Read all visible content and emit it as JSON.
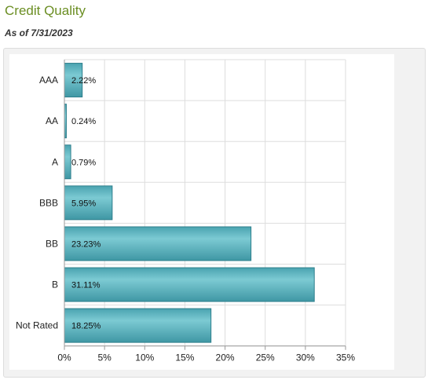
{
  "header": {
    "title": "Credit Quality",
    "subtitle": "As of 7/31/2023"
  },
  "colors": {
    "bar_fill": "#5ab4c0",
    "bar_stroke": "#2e7f8c",
    "title": "#6b8e23",
    "grid": "#dddddd",
    "axis": "#999999"
  },
  "chart_data": {
    "type": "bar",
    "orientation": "horizontal",
    "title": "",
    "xlabel": "",
    "ylabel": "",
    "categories": [
      "AAA",
      "AA",
      "A",
      "BBB",
      "BB",
      "B",
      "Not Rated"
    ],
    "values": [
      2.22,
      0.24,
      0.79,
      5.95,
      23.23,
      31.11,
      18.25
    ],
    "data_labels": [
      "2.22%",
      "0.24%",
      "0.79%",
      "5.95%",
      "23.23%",
      "31.11%",
      "18.25%"
    ],
    "xlim": [
      0,
      35
    ],
    "ticks": [
      0,
      5,
      10,
      15,
      20,
      25,
      30,
      35
    ],
    "tick_labels": [
      "0%",
      "5%",
      "10%",
      "15%",
      "20%",
      "25%",
      "30%",
      "35%"
    ],
    "grid": true,
    "legend": "none"
  }
}
